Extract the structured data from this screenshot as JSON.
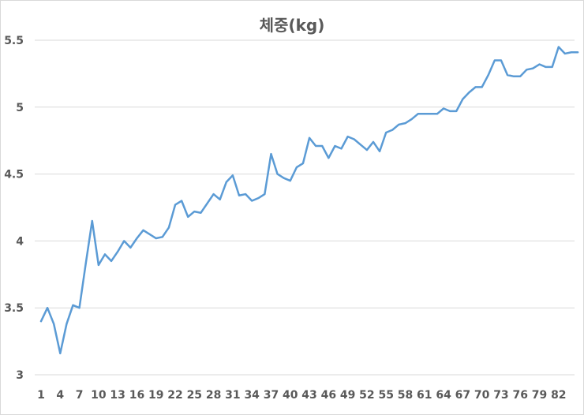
{
  "chart_data": {
    "type": "line",
    "title": "체중(kg)",
    "xlabel": "",
    "ylabel": "",
    "ylim": [
      3,
      5.5
    ],
    "y_ticks": [
      "3",
      "3.5",
      "4",
      "4.5",
      "5",
      "5.5"
    ],
    "x_tick_labels": [
      "1",
      "4",
      "7",
      "10",
      "13",
      "16",
      "19",
      "22",
      "25",
      "28",
      "31",
      "34",
      "37",
      "40",
      "43",
      "46",
      "49",
      "52",
      "55",
      "58",
      "61",
      "64",
      "67",
      "70",
      "73",
      "76",
      "79",
      "82"
    ],
    "grid": true,
    "legend": "none",
    "line_color": "#5b9bd5",
    "x": [
      1,
      2,
      3,
      4,
      5,
      6,
      7,
      8,
      9,
      10,
      11,
      12,
      13,
      14,
      15,
      16,
      17,
      18,
      19,
      20,
      21,
      22,
      23,
      24,
      25,
      26,
      27,
      28,
      29,
      30,
      31,
      32,
      33,
      34,
      35,
      36,
      37,
      38,
      39,
      40,
      41,
      42,
      43,
      44,
      45,
      46,
      47,
      48,
      49,
      50,
      51,
      52,
      53,
      54,
      55,
      56,
      57,
      58,
      59,
      60,
      61,
      62,
      63,
      64,
      65,
      66,
      67,
      68,
      69,
      70,
      71,
      72,
      73,
      74,
      75,
      76,
      77,
      78,
      79,
      80,
      81,
      82,
      83,
      84,
      85
    ],
    "series": [
      {
        "values": [
          3.4,
          3.5,
          3.38,
          3.16,
          3.38,
          3.52,
          3.5,
          3.83,
          4.15,
          3.82,
          3.9,
          3.85,
          3.92,
          4.0,
          3.95,
          4.02,
          4.08,
          4.05,
          4.02,
          4.03,
          4.1,
          4.27,
          4.3,
          4.18,
          4.22,
          4.21,
          4.28,
          4.35,
          4.31,
          4.44,
          4.49,
          4.34,
          4.35,
          4.3,
          4.32,
          4.35,
          4.65,
          4.5,
          4.47,
          4.45,
          4.55,
          4.58,
          4.77,
          4.71,
          4.71,
          4.62,
          4.71,
          4.69,
          4.78,
          4.76,
          4.72,
          4.68,
          4.74,
          4.67,
          4.81,
          4.83,
          4.87,
          4.88,
          4.91,
          4.95,
          4.95,
          4.95,
          4.95,
          4.99,
          4.97,
          4.97,
          5.06,
          5.11,
          5.15,
          5.15,
          5.24,
          5.35,
          5.35,
          5.24,
          5.23,
          5.23,
          5.28,
          5.29,
          5.32,
          5.3,
          5.3,
          5.45,
          5.4,
          5.41,
          5.41
        ]
      }
    ]
  }
}
